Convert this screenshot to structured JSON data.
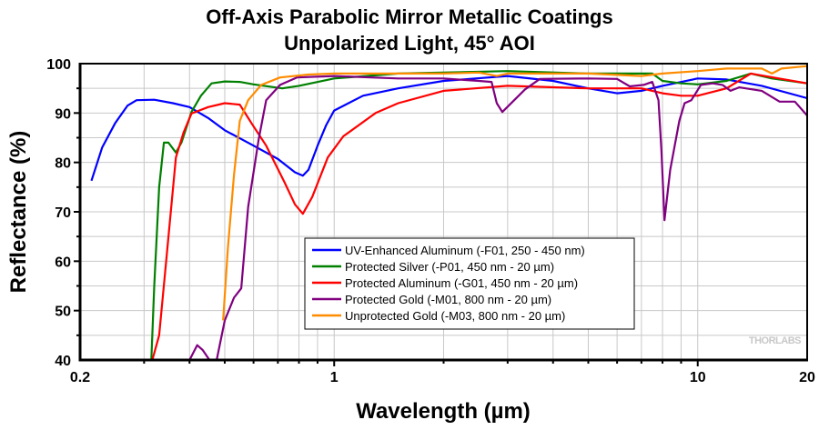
{
  "chart_data": {
    "type": "line",
    "title": [
      "Off-Axis Parabolic Mirror Metallic Coatings",
      "Unpolarized Light, 45° AOI"
    ],
    "xlabel": "Wavelength (µm)",
    "ylabel": "Reflectance (%)",
    "xscale": "log",
    "xlim": [
      0.2,
      20
    ],
    "ylim": [
      40,
      100
    ],
    "xticks": [
      {
        "v": 0.2,
        "label": "0.2"
      },
      {
        "v": 1,
        "label": "1"
      },
      {
        "v": 10,
        "label": "10"
      },
      {
        "v": 20,
        "label": "20"
      }
    ],
    "yticks": [
      40,
      50,
      60,
      70,
      80,
      90,
      100
    ],
    "grid": true,
    "legend_position": "center-right",
    "watermark": "THORLABS",
    "series": [
      {
        "name": "UV-Enhanced Aluminum (-F01, 250 - 450 nm)",
        "color": "#0000ff",
        "points": [
          [
            0.215,
            76.3
          ],
          [
            0.23,
            83
          ],
          [
            0.25,
            88
          ],
          [
            0.27,
            91.5
          ],
          [
            0.286,
            92.6
          ],
          [
            0.32,
            92.7
          ],
          [
            0.36,
            92
          ],
          [
            0.4,
            91.2
          ],
          [
            0.45,
            89
          ],
          [
            0.5,
            86.5
          ],
          [
            0.6,
            83.4
          ],
          [
            0.7,
            80.7
          ],
          [
            0.78,
            78
          ],
          [
            0.82,
            77.3
          ],
          [
            0.85,
            78.5
          ],
          [
            0.9,
            83.4
          ],
          [
            0.95,
            87.5
          ],
          [
            1.0,
            90.5
          ],
          [
            1.2,
            93.5
          ],
          [
            1.5,
            95
          ],
          [
            2,
            96.5
          ],
          [
            3,
            97.5
          ],
          [
            4,
            96.5
          ],
          [
            5,
            95
          ],
          [
            6,
            94
          ],
          [
            7,
            94.5
          ],
          [
            8,
            95.5
          ],
          [
            10,
            97
          ],
          [
            12,
            96.8
          ],
          [
            15,
            95.5
          ],
          [
            20,
            93
          ]
        ]
      },
      {
        "name": "Protected Silver (-P01, 450 nm - 20 µm)",
        "color": "#008000",
        "points": [
          [
            0.314,
            40
          ],
          [
            0.32,
            55
          ],
          [
            0.33,
            75
          ],
          [
            0.34,
            84
          ],
          [
            0.35,
            84
          ],
          [
            0.367,
            82
          ],
          [
            0.38,
            84
          ],
          [
            0.405,
            90.2
          ],
          [
            0.43,
            93.5
          ],
          [
            0.46,
            96
          ],
          [
            0.5,
            96.4
          ],
          [
            0.55,
            96.3
          ],
          [
            0.6,
            95.8
          ],
          [
            0.72,
            95
          ],
          [
            0.8,
            95.5
          ],
          [
            1.0,
            97
          ],
          [
            1.5,
            98
          ],
          [
            3,
            98.5
          ],
          [
            5,
            98
          ],
          [
            7.5,
            98
          ],
          [
            8,
            96.5
          ],
          [
            9,
            96
          ],
          [
            10,
            95.8
          ],
          [
            12,
            96.5
          ],
          [
            14,
            98
          ],
          [
            16,
            97
          ],
          [
            20,
            96
          ]
        ]
      },
      {
        "name": "Protected Aluminum (-G01, 450 nm - 20 µm)",
        "color": "#ff0000",
        "points": [
          [
            0.316,
            40
          ],
          [
            0.33,
            45
          ],
          [
            0.345,
            60
          ],
          [
            0.367,
            81
          ],
          [
            0.385,
            86
          ],
          [
            0.405,
            89.9
          ],
          [
            0.45,
            91.2
          ],
          [
            0.5,
            92
          ],
          [
            0.55,
            91.7
          ],
          [
            0.595,
            87.7
          ],
          [
            0.65,
            83.4
          ],
          [
            0.73,
            76
          ],
          [
            0.78,
            71.5
          ],
          [
            0.82,
            69.6
          ],
          [
            0.87,
            73
          ],
          [
            0.96,
            81
          ],
          [
            1.06,
            85.3
          ],
          [
            1.3,
            90
          ],
          [
            1.5,
            92
          ],
          [
            2,
            94.5
          ],
          [
            3,
            95.5
          ],
          [
            5,
            95
          ],
          [
            7,
            95
          ],
          [
            8,
            94
          ],
          [
            9,
            93.5
          ],
          [
            10,
            93.5
          ],
          [
            12,
            95
          ],
          [
            14,
            98
          ],
          [
            20,
            96
          ]
        ]
      },
      {
        "name": "Protected Gold (-M01, 800 nm - 20 µm)",
        "color": "#800080",
        "points": [
          [
            0.4,
            40
          ],
          [
            0.42,
            43
          ],
          [
            0.435,
            42
          ],
          [
            0.454,
            40
          ],
          [
            0.475,
            40
          ],
          [
            0.5,
            48
          ],
          [
            0.53,
            52.6
          ],
          [
            0.555,
            54.5
          ],
          [
            0.58,
            71
          ],
          [
            0.62,
            84.7
          ],
          [
            0.65,
            92.6
          ],
          [
            0.71,
            95.7
          ],
          [
            0.79,
            97.2
          ],
          [
            1.0,
            97.5
          ],
          [
            1.5,
            97
          ],
          [
            2,
            97
          ],
          [
            2.5,
            96.5
          ],
          [
            2.71,
            96.3
          ],
          [
            2.8,
            92
          ],
          [
            2.9,
            90.2
          ],
          [
            3.35,
            94.8
          ],
          [
            3.68,
            96.9
          ],
          [
            5,
            97
          ],
          [
            6,
            96.9
          ],
          [
            6.5,
            95.4
          ],
          [
            7.1,
            95.7
          ],
          [
            7.5,
            96.3
          ],
          [
            7.8,
            92.6
          ],
          [
            7.95,
            82.2
          ],
          [
            8.1,
            68.3
          ],
          [
            8.4,
            78.5
          ],
          [
            8.9,
            88.4
          ],
          [
            9.2,
            92
          ],
          [
            9.6,
            92.6
          ],
          [
            10.2,
            95.7
          ],
          [
            11,
            96
          ],
          [
            11.7,
            95.7
          ],
          [
            12.3,
            94.5
          ],
          [
            13,
            95.2
          ],
          [
            15,
            94.5
          ],
          [
            16.8,
            92.3
          ],
          [
            18.5,
            92.3
          ],
          [
            20,
            89.5
          ]
        ]
      },
      {
        "name": "Unprotected Gold (-M03, 800 nm - 20 µm)",
        "color": "#ff8c00",
        "points": [
          [
            0.495,
            48
          ],
          [
            0.51,
            62.6
          ],
          [
            0.53,
            77.4
          ],
          [
            0.55,
            88.4
          ],
          [
            0.58,
            92.6
          ],
          [
            0.63,
            95.7
          ],
          [
            0.71,
            97.2
          ],
          [
            0.85,
            97.8
          ],
          [
            1,
            98
          ],
          [
            2,
            98
          ],
          [
            2.5,
            98.2
          ],
          [
            2.8,
            97.5
          ],
          [
            3,
            98
          ],
          [
            5,
            98
          ],
          [
            7,
            97.5
          ],
          [
            8,
            98
          ],
          [
            10,
            98.5
          ],
          [
            12,
            99
          ],
          [
            15,
            99
          ],
          [
            16,
            98
          ],
          [
            17,
            99
          ],
          [
            20,
            99.5
          ]
        ]
      }
    ]
  }
}
